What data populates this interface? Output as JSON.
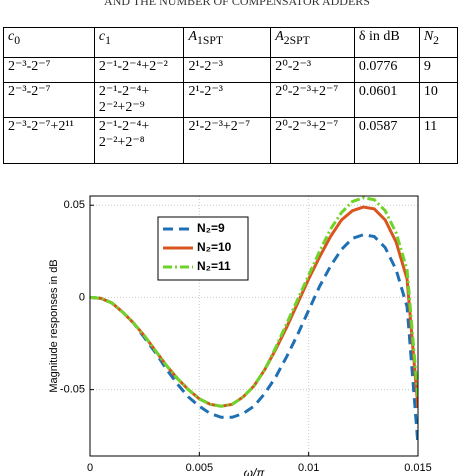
{
  "caption": "AND THE NUMBER OF COMPENSATOR ADDERS",
  "table": {
    "header": [
      {
        "base": "c",
        "sub": "0"
      },
      {
        "base": "c",
        "sub": "1"
      },
      {
        "base": "A",
        "sub": "1SPT"
      },
      {
        "base": "A",
        "sub": "2SPT"
      },
      {
        "base": "δ in dB"
      },
      {
        "base": "N",
        "sub": "2"
      }
    ],
    "rows": [
      [
        "2⁻³-2⁻⁷",
        [
          "2⁻¹-2⁻⁴+2⁻²"
        ],
        "2¹-2⁻³",
        "2⁰-2⁻³",
        0.0776,
        9
      ],
      [
        "2⁻³-2⁻⁷",
        [
          "2⁻¹-2⁻⁴+",
          "2⁻²+2⁻⁹"
        ],
        "2¹-2⁻³",
        "2⁰-2⁻³+2⁻⁷",
        0.0601,
        10
      ],
      [
        "2⁻³-2⁻⁷+2¹¹",
        [
          "2⁻¹-2⁻⁴+",
          "2⁻²+2⁻⁸"
        ],
        "2¹-2⁻³+2⁻⁷",
        "2⁰-2⁻³+2⁻⁷",
        0.0587,
        11
      ]
    ]
  },
  "chart_data": {
    "type": "line",
    "xlabel": "ω/π",
    "ylabel": "Magnitude responses in dB",
    "x": [
      0,
      0.0005,
      0.001,
      0.0015,
      0.002,
      0.0025,
      0.003,
      0.0035,
      0.004,
      0.0045,
      0.005,
      0.0055,
      0.006,
      0.0065,
      0.007,
      0.0075,
      0.008,
      0.0085,
      0.009,
      0.0095,
      0.01,
      0.0105,
      0.011,
      0.0115,
      0.012,
      0.0125,
      0.013,
      0.0135,
      0.014,
      0.0145,
      0.015
    ],
    "series": [
      {
        "name": "N₂=9",
        "color": "#1f6fb4",
        "dash": "dashed",
        "values": [
          0,
          -0.0005,
          -0.003,
          -0.008,
          -0.014,
          -0.022,
          -0.03,
          -0.039,
          -0.047,
          -0.054,
          -0.059,
          -0.063,
          -0.065,
          -0.065,
          -0.063,
          -0.059,
          -0.052,
          -0.043,
          -0.032,
          -0.02,
          -0.007,
          0.006,
          0.017,
          0.026,
          0.032,
          0.034,
          0.033,
          0.027,
          0.015,
          -0.005,
          -0.08
        ]
      },
      {
        "name": "N₂=10",
        "color": "#d9541e",
        "dash": "solid",
        "values": [
          0,
          -0.0005,
          -0.003,
          -0.008,
          -0.014,
          -0.021,
          -0.029,
          -0.037,
          -0.044,
          -0.05,
          -0.055,
          -0.058,
          -0.059,
          -0.058,
          -0.054,
          -0.048,
          -0.039,
          -0.028,
          -0.016,
          -0.003,
          0.01,
          0.022,
          0.033,
          0.042,
          0.047,
          0.049,
          0.048,
          0.042,
          0.03,
          0.01,
          -0.06
        ]
      },
      {
        "name": "N₂=11",
        "color": "#6fd42a",
        "dash": "dashdot",
        "values": [
          0,
          -0.0005,
          -0.003,
          -0.008,
          -0.014,
          -0.021,
          -0.029,
          -0.037,
          -0.044,
          -0.05,
          -0.055,
          -0.058,
          -0.059,
          -0.058,
          -0.054,
          -0.048,
          -0.039,
          -0.027,
          -0.014,
          -0.001,
          0.012,
          0.025,
          0.037,
          0.046,
          0.052,
          0.054,
          0.053,
          0.047,
          0.035,
          0.015,
          -0.055
        ]
      }
    ],
    "xlim": [
      0,
      0.015
    ],
    "ylim": [
      -0.086,
      0.055
    ],
    "xticks": [
      0,
      0.005,
      0.01,
      0.015
    ],
    "yticks": [
      -0.05,
      0,
      0.05
    ],
    "grid": true,
    "legend": "upper left"
  }
}
